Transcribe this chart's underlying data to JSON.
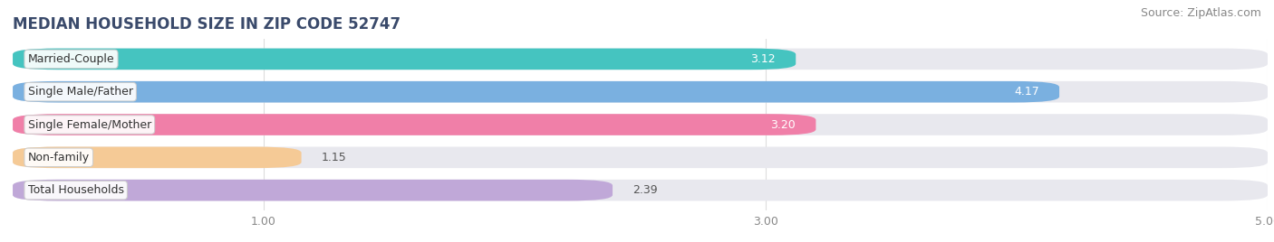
{
  "title": "MEDIAN HOUSEHOLD SIZE IN ZIP CODE 52747",
  "source": "Source: ZipAtlas.com",
  "categories": [
    "Married-Couple",
    "Single Male/Father",
    "Single Female/Mother",
    "Non-family",
    "Total Households"
  ],
  "values": [
    3.12,
    4.17,
    3.2,
    1.15,
    2.39
  ],
  "bar_colors": [
    "#45c4c0",
    "#7ab0e0",
    "#f07fa8",
    "#f5ca96",
    "#c0a8d8"
  ],
  "xlim": [
    0,
    5.0
  ],
  "xticks": [
    1.0,
    3.0,
    5.0
  ],
  "background_color": "#ffffff",
  "bar_bg_color": "#e8e8ee",
  "title_color": "#3a4a6b",
  "source_color": "#888888",
  "title_fontsize": 12,
  "source_fontsize": 9,
  "label_fontsize": 9,
  "value_fontsize": 9,
  "tick_fontsize": 9
}
